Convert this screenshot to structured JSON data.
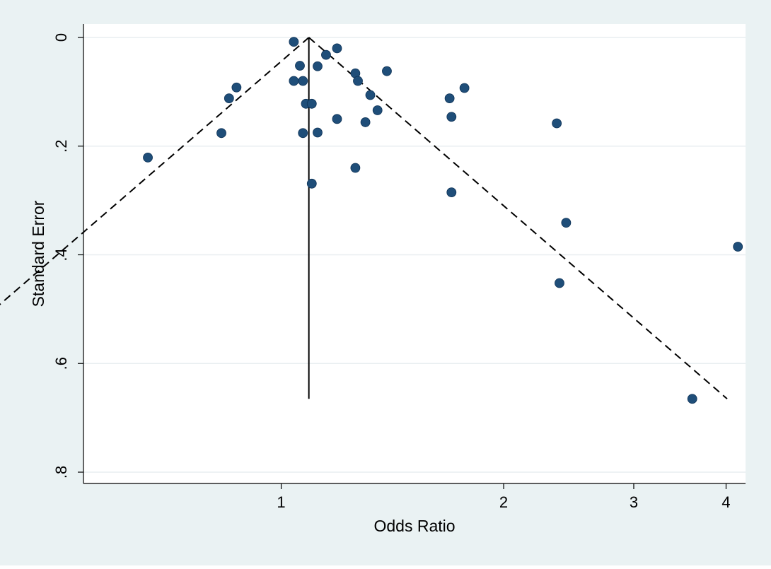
{
  "chart_data": {
    "type": "scatter",
    "title": "",
    "xlabel": "Odds Ratio",
    "ylabel": "Standard Error",
    "x_scale": "log",
    "y_reversed": true,
    "x_ticks": [
      {
        "value": 1,
        "label": "1"
      },
      {
        "value": 2,
        "label": "2"
      },
      {
        "value": 3,
        "label": "3"
      },
      {
        "value": 4,
        "label": "4"
      }
    ],
    "y_ticks": [
      {
        "value": 0,
        "label": "0"
      },
      {
        "value": 0.2,
        "label": ".2"
      },
      {
        "value": 0.4,
        "label": ".4"
      },
      {
        "value": 0.6,
        "label": ".6"
      },
      {
        "value": 0.8,
        "label": ".8"
      }
    ],
    "xlim": [
      0.54,
      4.25
    ],
    "ylim": [
      0,
      0.82
    ],
    "grid": "horizontal",
    "pooled_or": 1.09,
    "funnel_se_max": 0.665,
    "points": [
      {
        "x": 1.04,
        "y": 0.008
      },
      {
        "x": 1.19,
        "y": 0.02
      },
      {
        "x": 1.15,
        "y": 0.032
      },
      {
        "x": 1.06,
        "y": 0.052
      },
      {
        "x": 1.12,
        "y": 0.053
      },
      {
        "x": 1.39,
        "y": 0.062
      },
      {
        "x": 1.26,
        "y": 0.066
      },
      {
        "x": 1.04,
        "y": 0.08
      },
      {
        "x": 1.07,
        "y": 0.08
      },
      {
        "x": 1.27,
        "y": 0.08
      },
      {
        "x": 0.87,
        "y": 0.092
      },
      {
        "x": 1.77,
        "y": 0.093
      },
      {
        "x": 1.32,
        "y": 0.106
      },
      {
        "x": 0.85,
        "y": 0.112
      },
      {
        "x": 1.69,
        "y": 0.112
      },
      {
        "x": 1.08,
        "y": 0.122
      },
      {
        "x": 1.1,
        "y": 0.122
      },
      {
        "x": 1.35,
        "y": 0.134
      },
      {
        "x": 1.7,
        "y": 0.146
      },
      {
        "x": 1.19,
        "y": 0.15
      },
      {
        "x": 1.3,
        "y": 0.156
      },
      {
        "x": 2.36,
        "y": 0.158
      },
      {
        "x": 0.83,
        "y": 0.176
      },
      {
        "x": 1.07,
        "y": 0.176
      },
      {
        "x": 1.12,
        "y": 0.175
      },
      {
        "x": 0.66,
        "y": 0.221
      },
      {
        "x": 1.26,
        "y": 0.24
      },
      {
        "x": 1.1,
        "y": 0.269
      },
      {
        "x": 1.7,
        "y": 0.285
      },
      {
        "x": 2.43,
        "y": 0.341
      },
      {
        "x": 4.15,
        "y": 0.385
      },
      {
        "x": 2.38,
        "y": 0.452
      },
      {
        "x": 3.6,
        "y": 0.665
      }
    ]
  },
  "colors": {
    "outer_background": "#eaf2f3",
    "plot_background": "#ffffff",
    "marker": "#1f4e79",
    "marker_stroke": "#0f3357",
    "grid": "#e8eef0",
    "axis": "#000000",
    "funnel": "#000000"
  }
}
